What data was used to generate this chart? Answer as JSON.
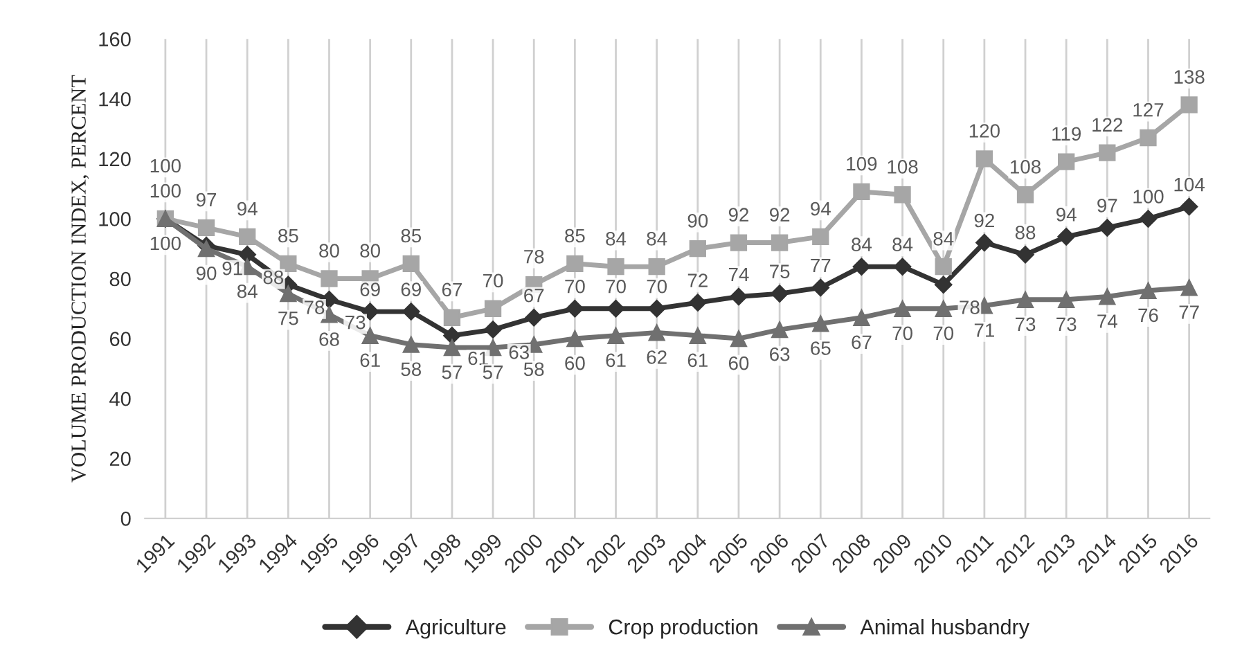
{
  "chart_data": {
    "type": "line",
    "ylabel": "VOLUME PRODUCTION INDEX, PERCENT",
    "categories": [
      "1991",
      "1992",
      "1993",
      "1994",
      "1995",
      "1996",
      "1997",
      "1998",
      "1999",
      "2000",
      "2001",
      "2002",
      "2003",
      "2004",
      "2005",
      "2006",
      "2007",
      "2008",
      "2009",
      "2010",
      "2011",
      "2012",
      "2013",
      "2014",
      "2015",
      "2016"
    ],
    "series": [
      {
        "name": "Agriculture",
        "color": "#333333",
        "marker": "diamond",
        "values": [
          100,
          91,
          88,
          78,
          73,
          69,
          69,
          61,
          63,
          67,
          70,
          70,
          70,
          72,
          74,
          75,
          77,
          84,
          84,
          78,
          92,
          88,
          94,
          97,
          100,
          104
        ]
      },
      {
        "name": "Crop production",
        "color": "#a6a6a6",
        "marker": "square",
        "values": [
          100,
          97,
          94,
          85,
          80,
          80,
          85,
          67,
          70,
          78,
          85,
          84,
          84,
          90,
          92,
          92,
          94,
          109,
          108,
          84,
          120,
          108,
          119,
          122,
          127,
          138
        ]
      },
      {
        "name": "Animal husbandry",
        "color": "#707070",
        "marker": "triangle",
        "values": [
          100,
          90,
          84,
          75,
          68,
          61,
          58,
          57,
          57,
          58,
          60,
          61,
          62,
          61,
          60,
          63,
          65,
          67,
          70,
          70,
          71,
          73,
          73,
          74,
          76,
          77
        ]
      }
    ],
    "ylim": [
      0,
      160
    ],
    "yticks": [
      0,
      20,
      40,
      60,
      80,
      100,
      120,
      140,
      160
    ],
    "grid": "x",
    "legend": "bottom",
    "data_labels": true,
    "line_style": "solid"
  }
}
